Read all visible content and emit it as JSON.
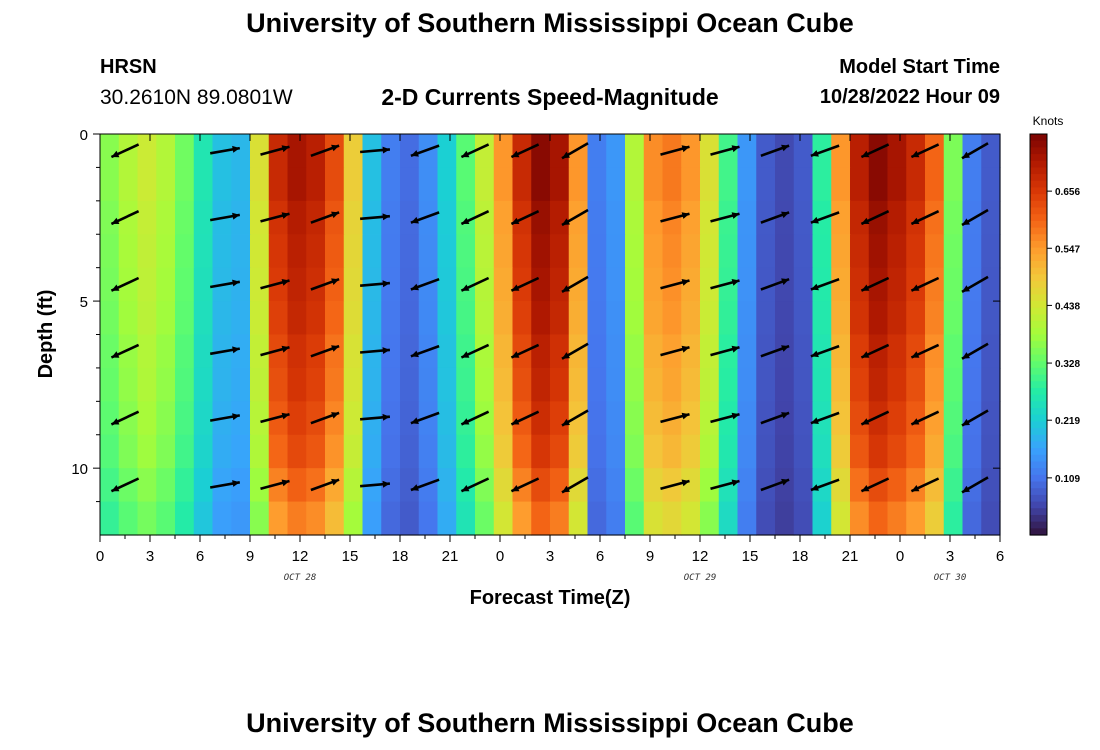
{
  "header": {
    "title": "University of Southern Mississippi Ocean Cube",
    "station": "HRSN",
    "coordinates": "30.2610N  89.0801W",
    "subtitle": "2-D Currents Speed-Magnitude",
    "model_start_label": "Model Start Time",
    "model_start_value": "10/28/2022 Hour 09"
  },
  "footer": {
    "title": "University of Southern Mississippi Ocean Cube"
  },
  "colors": {
    "scale": [
      "#30123b",
      "#4145ab",
      "#4675ed",
      "#39a2fc",
      "#1bcfd4",
      "#24eca6",
      "#61fc6c",
      "#a4fc3b",
      "#d1e834",
      "#f3c63a",
      "#fe9b2d",
      "#f36315",
      "#d93806",
      "#b11901",
      "#7a0402"
    ],
    "arrow": "#000000"
  },
  "chart_data": {
    "type": "heatmap",
    "title": "2-D Currents Speed-Magnitude",
    "xlabel": "Forecast Time(Z)",
    "ylabel": "Depth (ft)",
    "xlim": [
      0,
      54
    ],
    "ylim": [
      0,
      12
    ],
    "x_tick_labels": [
      "0",
      "3",
      "6",
      "9",
      "12",
      "15",
      "18",
      "21",
      "0",
      "3",
      "6",
      "9",
      "12",
      "15",
      "18",
      "21",
      "0",
      "3",
      "6"
    ],
    "y_tick_labels": [
      "0",
      "5",
      "10"
    ],
    "y_ticks": [
      0,
      5,
      10
    ],
    "date_labels": [
      {
        "text": "OCT 28",
        "x": 12
      },
      {
        "text": "OCT 29",
        "x": 36
      },
      {
        "text": "OCT 30",
        "x": 51
      }
    ],
    "colorbar": {
      "label": "Knots",
      "range": [
        0.0,
        0.765
      ],
      "tick_labels": [
        "0.656",
        "0.547",
        "0.438",
        "0.328",
        "0.219",
        "0.109"
      ],
      "tick_values": [
        0.656,
        0.547,
        0.438,
        0.328,
        0.219,
        0.109
      ]
    },
    "speed_knots": [
      0.36,
      0.4,
      0.43,
      0.4,
      0.34,
      0.26,
      0.2,
      0.19,
      0.45,
      0.68,
      0.72,
      0.7,
      0.63,
      0.48,
      0.2,
      0.12,
      0.1,
      0.14,
      0.22,
      0.32,
      0.42,
      0.55,
      0.68,
      0.75,
      0.72,
      0.55,
      0.12,
      0.15,
      0.4,
      0.56,
      0.58,
      0.55,
      0.45,
      0.3,
      0.15,
      0.08,
      0.06,
      0.08,
      0.28,
      0.55,
      0.7,
      0.75,
      0.72,
      0.68,
      0.6,
      0.35,
      0.12,
      0.08
    ],
    "depth_factor": [
      1.0,
      1.0,
      0.98,
      0.97,
      0.96,
      0.95,
      0.93,
      0.92,
      0.9,
      0.88,
      0.84,
      0.8
    ],
    "arrows": {
      "times": [
        1.5,
        7.5,
        10.5,
        13.5,
        16.5,
        19.5,
        22.5,
        25.5,
        28.5,
        34.5,
        37.5,
        40.5,
        43.5,
        46.5,
        49.5,
        52.5
      ],
      "depths": [
        0.5,
        2.5,
        4.5,
        6.5,
        8.5,
        10.5
      ],
      "angles_deg": [
        205,
        10,
        15,
        20,
        5,
        200,
        205,
        205,
        210,
        15,
        15,
        20,
        200,
        205,
        205,
        210
      ]
    }
  }
}
